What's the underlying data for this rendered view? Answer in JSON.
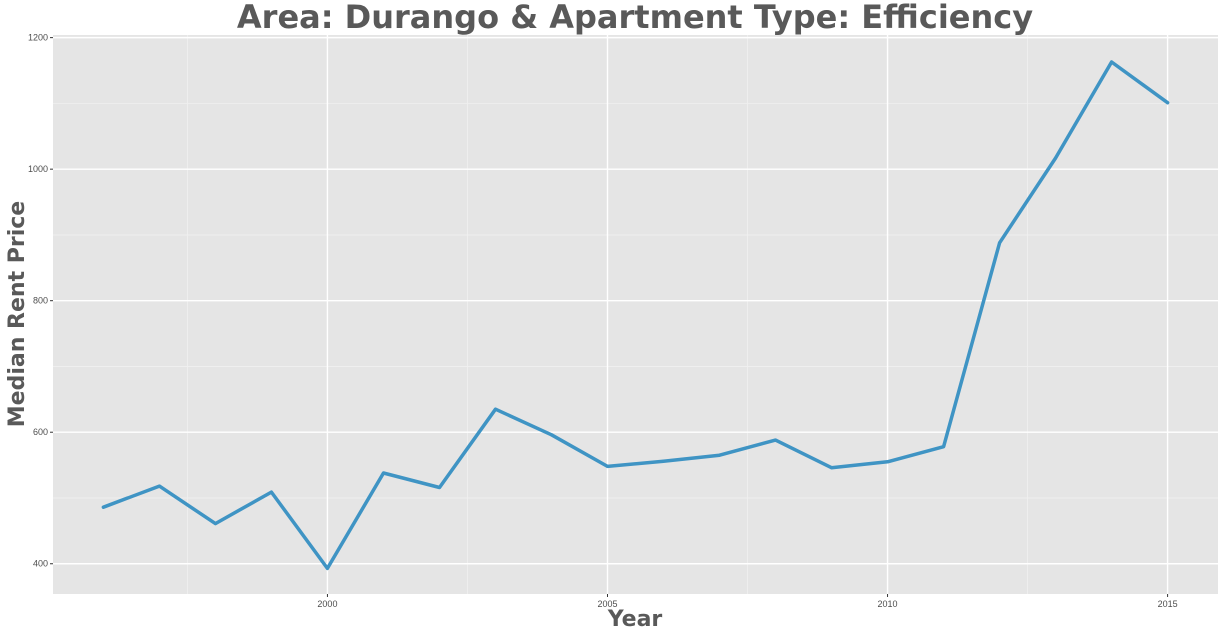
{
  "chart_data": {
    "type": "line",
    "title": "Area: Durango & Apartment Type: Efficiency",
    "xlabel": "Year",
    "ylabel": "Median Rent Price",
    "xlim": [
      1995.1,
      2015.9
    ],
    "ylim": [
      354,
      1204
    ],
    "x_ticks": [
      2000,
      2005,
      2010,
      2015
    ],
    "x_tick_labels": [
      "2000",
      "2005",
      "2010",
      "2015"
    ],
    "y_ticks": [
      400,
      600,
      800,
      1000,
      1200
    ],
    "y_tick_labels": [
      "400",
      "600",
      "800",
      "1000",
      "1200"
    ],
    "grid": true,
    "legend": "none",
    "series": [
      {
        "name": "Median Rent Price",
        "color": "#3f94c4",
        "x": [
          1996,
          1997,
          1998,
          1999,
          2000,
          2001,
          2002,
          2003,
          2004,
          2005,
          2006,
          2007,
          2008,
          2009,
          2010,
          2011,
          2012,
          2013,
          2014,
          2015
        ],
        "values": [
          486,
          518,
          461,
          509,
          393,
          538,
          516,
          635,
          596,
          548,
          556,
          565,
          588,
          546,
          555,
          578,
          888,
          1017,
          1163,
          1101
        ]
      }
    ]
  },
  "colors": {
    "panel_background": "#e5e5e5",
    "grid_major": "#ffffff",
    "grid_minor": "#f0f0f0",
    "text": "#595959"
  }
}
